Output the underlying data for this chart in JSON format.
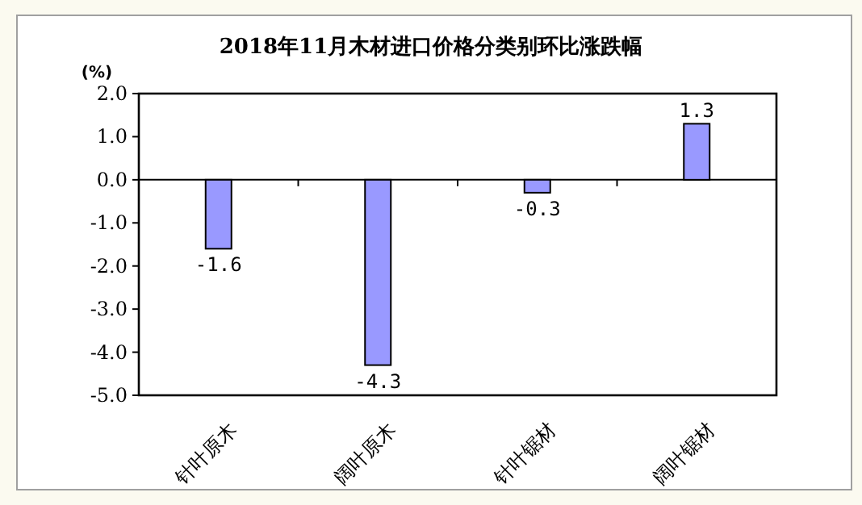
{
  "chart_data": {
    "type": "bar",
    "title": "2018年11月木材进口价格分类别环比涨跌幅",
    "ylabel": "(%)",
    "categories": [
      "针叶原木",
      "阔叶原木",
      "针叶锯材",
      "阔叶锯材"
    ],
    "values": [
      -1.6,
      -4.3,
      -0.3,
      1.3
    ],
    "color": "#9999ff",
    "data_labels": true,
    "ylim": [
      -5,
      2
    ],
    "yticks": [
      {
        "value": 2,
        "label": "2.0"
      },
      {
        "value": 1,
        "label": "1.0"
      },
      {
        "value": 0,
        "label": "0.0"
      },
      {
        "value": -1,
        "label": "-1.0"
      },
      {
        "value": -2,
        "label": "-2.0"
      },
      {
        "value": -3,
        "label": "-3.0"
      },
      {
        "value": -4,
        "label": "-4.0"
      },
      {
        "value": -5,
        "label": "-5.0"
      }
    ]
  }
}
